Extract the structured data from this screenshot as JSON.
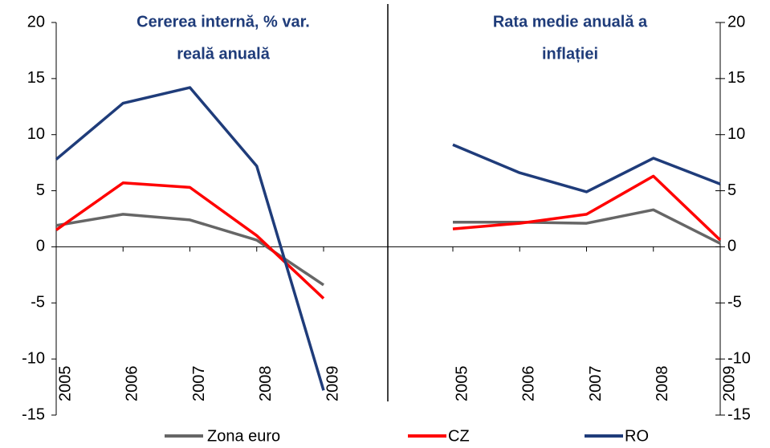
{
  "chart_data": [
    {
      "type": "line",
      "title": [
        "Cererea internă, % var.",
        "reală anuală"
      ],
      "categories": [
        "2005",
        "2006",
        "2007",
        "2008",
        "2009"
      ],
      "series": [
        {
          "name": "Zona euro",
          "color": "#666666",
          "values": [
            1.9,
            2.9,
            2.4,
            0.6,
            -3.4
          ]
        },
        {
          "name": "CZ",
          "color": "#ff0000",
          "values": [
            1.5,
            5.7,
            5.3,
            1.0,
            -4.6
          ]
        },
        {
          "name": "RO",
          "color": "#1f3c7a",
          "values": [
            7.8,
            12.8,
            14.2,
            7.2,
            -12.8
          ]
        }
      ],
      "ylim": [
        -15,
        20
      ],
      "yticks": [
        -15,
        -10,
        -5,
        0,
        5,
        10,
        15,
        20
      ]
    },
    {
      "type": "line",
      "title": [
        "Rata medie anuală a",
        "inflației"
      ],
      "categories": [
        "2005",
        "2006",
        "2007",
        "2008",
        "2009"
      ],
      "series": [
        {
          "color": "#666666",
          "values": [
            2.2,
            2.2,
            2.1,
            3.3,
            0.3
          ]
        },
        {
          "color": "#ff0000",
          "values": [
            1.6,
            2.1,
            2.9,
            6.3,
            0.6
          ]
        },
        {
          "color": "#1f3c7a",
          "values": [
            9.1,
            6.6,
            4.9,
            7.9,
            5.6
          ]
        }
      ],
      "ylim": [
        -15,
        20
      ],
      "yticks": [
        -15,
        -10,
        -5,
        0,
        5,
        10,
        15,
        20
      ]
    }
  ]
}
